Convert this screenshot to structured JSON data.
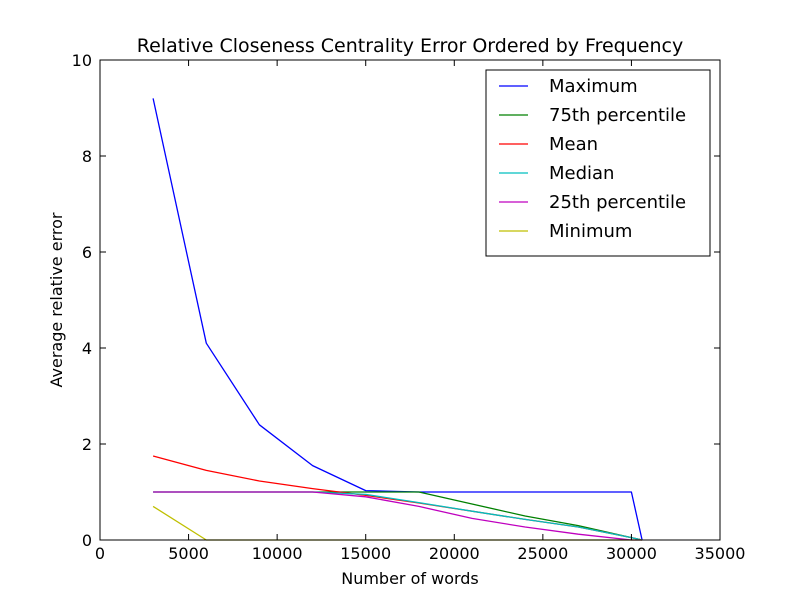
{
  "chart_data": {
    "type": "line",
    "title": "Relative Closeness Centrality Error Ordered by Frequency",
    "xlabel": "Number of words",
    "ylabel": "Average relative error",
    "xlim": [
      0,
      35000
    ],
    "ylim": [
      0,
      10
    ],
    "xticks": [
      "0",
      "5000",
      "10000",
      "15000",
      "20000",
      "25000",
      "30000",
      "35000"
    ],
    "yticks": [
      "0",
      "2",
      "4",
      "6",
      "8",
      "10"
    ],
    "grid": false,
    "legend_position": "top-right",
    "series": [
      {
        "name": "Maximum",
        "color": "#0000ff",
        "x": [
          3000,
          6000,
          9000,
          12000,
          15000,
          18000,
          21000,
          24000,
          27000,
          30000,
          30600
        ],
        "y": [
          9.2,
          4.1,
          2.4,
          1.55,
          1.03,
          1.0,
          1.0,
          1.0,
          1.0,
          1.0,
          0.0
        ]
      },
      {
        "name": "75th percentile",
        "color": "#008000",
        "x": [
          3000,
          6000,
          9000,
          12000,
          15000,
          18000,
          21000,
          24000,
          27000,
          30000,
          30600
        ],
        "y": [
          1.0,
          1.0,
          1.0,
          1.0,
          1.0,
          1.0,
          0.75,
          0.5,
          0.3,
          0.05,
          0.0
        ]
      },
      {
        "name": "Mean",
        "color": "#ff0000",
        "x": [
          3000,
          6000,
          9000,
          12000,
          15000,
          18000,
          21000,
          24000,
          27000,
          30000,
          30600
        ],
        "y": [
          1.75,
          1.45,
          1.23,
          1.07,
          0.93,
          0.77,
          0.6,
          0.43,
          0.27,
          0.05,
          0.0
        ]
      },
      {
        "name": "Median",
        "color": "#00bfbf",
        "x": [
          3000,
          6000,
          9000,
          12000,
          15000,
          18000,
          21000,
          24000,
          27000,
          30000,
          30600
        ],
        "y": [
          1.0,
          1.0,
          1.0,
          1.0,
          0.95,
          0.78,
          0.6,
          0.43,
          0.27,
          0.05,
          0.0
        ]
      },
      {
        "name": "25th percentile",
        "color": "#bf00bf",
        "x": [
          3000,
          6000,
          9000,
          12000,
          15000,
          18000,
          21000,
          24000,
          27000,
          30000,
          30600
        ],
        "y": [
          1.0,
          1.0,
          1.0,
          1.0,
          0.9,
          0.7,
          0.45,
          0.27,
          0.12,
          0.0,
          0.0
        ]
      },
      {
        "name": "Minimum",
        "color": "#bfbf00",
        "x": [
          3000,
          6000,
          9000,
          12000,
          15000,
          18000,
          21000,
          24000,
          27000,
          30000,
          30600
        ],
        "y": [
          0.7,
          0.0,
          0.0,
          0.0,
          0.0,
          0.0,
          0.0,
          0.0,
          0.0,
          0.0,
          0.0
        ]
      }
    ]
  }
}
